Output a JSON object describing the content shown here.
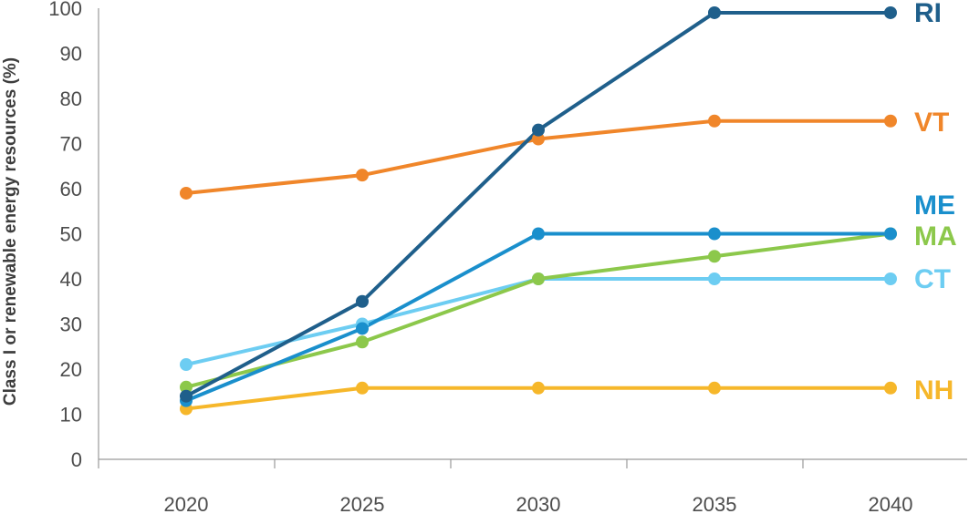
{
  "chart_data": {
    "type": "line",
    "title": "",
    "xlabel": "",
    "ylabel": "Class I or renewable energy resources (%)",
    "x": [
      2020,
      2025,
      2030,
      2035,
      2040
    ],
    "x_tick_labels": [
      "2020",
      "2025",
      "2030",
      "2035",
      "2040"
    ],
    "ylim": [
      0,
      100
    ],
    "y_ticks": [
      0,
      10,
      20,
      30,
      40,
      50,
      60,
      70,
      80,
      90,
      100
    ],
    "y_tick_labels": [
      "0",
      "10",
      "20",
      "30",
      "40",
      "50",
      "60",
      "70",
      "80",
      "90",
      "100"
    ],
    "grid": false,
    "legend": "direct labels at right end of lines",
    "series": [
      {
        "name": "RI",
        "color": "#1f5f8b",
        "values": [
          14,
          35,
          73,
          99,
          99
        ]
      },
      {
        "name": "VT",
        "color": "#f0862a",
        "values": [
          59,
          63,
          71,
          75,
          75
        ]
      },
      {
        "name": "ME",
        "color": "#1a8fcc",
        "values": [
          13,
          29,
          50,
          50,
          50
        ]
      },
      {
        "name": "MA",
        "color": "#8cc84b",
        "values": [
          16,
          26,
          40,
          45,
          50
        ]
      },
      {
        "name": "CT",
        "color": "#6dcdf2",
        "values": [
          21,
          30,
          40,
          40,
          40
        ]
      },
      {
        "name": "NH",
        "color": "#f6b72a",
        "values": [
          11.2,
          15.8,
          15.8,
          15.8,
          15.8
        ]
      }
    ]
  }
}
